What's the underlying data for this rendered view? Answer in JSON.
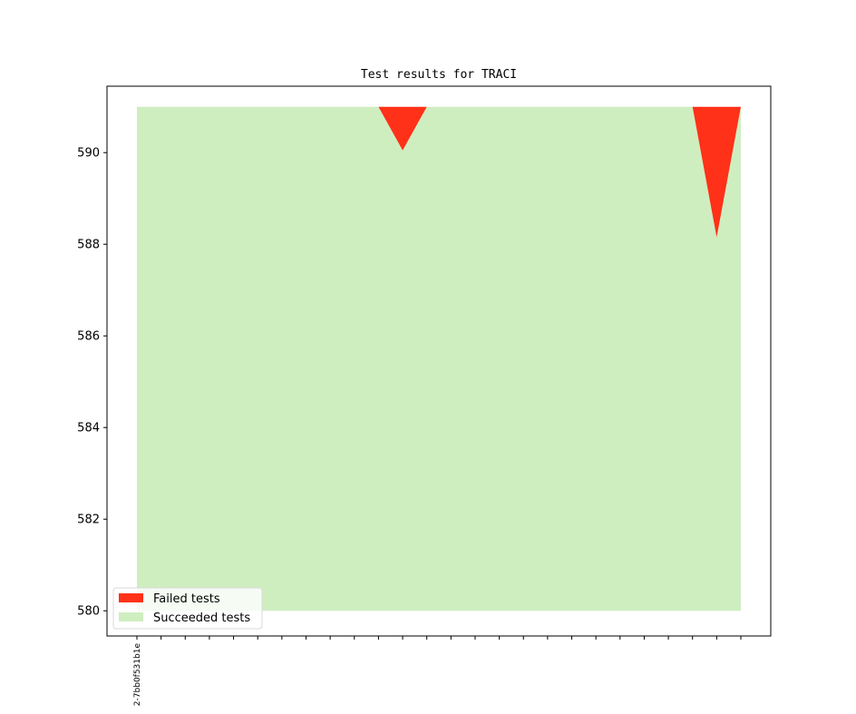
{
  "chart_data": {
    "type": "area",
    "title": "Test results for TRACI",
    "xlabel": "",
    "ylabel": "",
    "categories": [
      "2-7bb0f531b1e",
      "",
      "",
      "",
      "",
      "",
      "",
      "",
      "",
      "",
      "",
      "",
      "",
      "",
      "",
      "",
      "",
      "",
      "",
      "",
      "",
      "",
      "",
      "",
      "",
      ""
    ],
    "ylim": [
      579.45,
      591.45
    ],
    "yticks": [
      580,
      582,
      584,
      586,
      588,
      590
    ],
    "series": [
      {
        "name": "Failed tests",
        "color": "#ff3118",
        "lower": [
          591,
          591,
          591,
          591,
          591,
          591,
          591,
          591,
          591,
          591,
          591,
          590.05,
          591,
          591,
          591,
          591,
          591,
          591,
          591,
          591,
          591,
          591,
          591,
          591,
          588.15,
          591
        ],
        "upper": [
          591,
          591,
          591,
          591,
          591,
          591,
          591,
          591,
          591,
          591,
          591,
          591,
          591,
          591,
          591,
          591,
          591,
          591,
          591,
          591,
          591,
          591,
          591,
          591,
          591,
          591
        ]
      },
      {
        "name": "Succeeded tests",
        "color": "#cfeec0",
        "lower": [
          580,
          580,
          580,
          580,
          580,
          580,
          580,
          580,
          580,
          580,
          580,
          580,
          580,
          580,
          580,
          580,
          580,
          580,
          580,
          580,
          580,
          580,
          580,
          580,
          580,
          580
        ],
        "upper": [
          591,
          591,
          591,
          591,
          591,
          591,
          591,
          591,
          591,
          591,
          591,
          590.05,
          591,
          591,
          591,
          591,
          591,
          591,
          591,
          591,
          591,
          591,
          591,
          591,
          588.15,
          591
        ]
      }
    ],
    "legend_position": "lower-left",
    "grid": false
  }
}
